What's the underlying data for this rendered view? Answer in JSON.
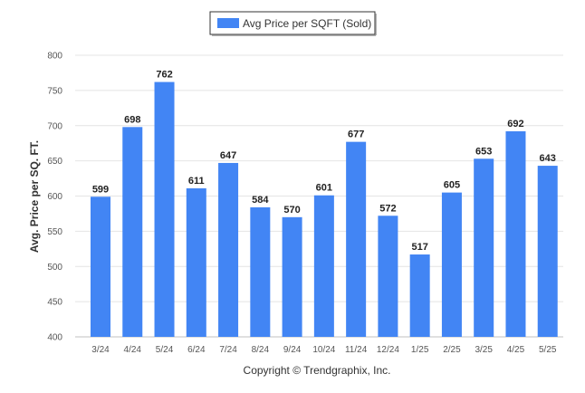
{
  "chart_data": {
    "type": "bar",
    "categories": [
      "3/24",
      "4/24",
      "5/24",
      "6/24",
      "7/24",
      "8/24",
      "9/24",
      "10/24",
      "11/24",
      "12/24",
      "1/25",
      "2/25",
      "3/25",
      "4/25",
      "5/25"
    ],
    "series": [
      {
        "name": "Avg Price per SQFT (Sold)",
        "values": [
          599,
          698,
          762,
          611,
          647,
          584,
          570,
          601,
          677,
          572,
          517,
          605,
          653,
          692,
          643
        ],
        "color": "#4285f4"
      }
    ],
    "ylabel": "Avg. Price per SQ. FT.",
    "xlabel": "",
    "ylim": [
      400,
      800
    ],
    "yticks": [
      400,
      450,
      500,
      550,
      600,
      650,
      700,
      750,
      800
    ],
    "grid": true,
    "legend_position": "top-center"
  },
  "footer": {
    "copyright": "Copyright © Trendgraphix, Inc."
  }
}
